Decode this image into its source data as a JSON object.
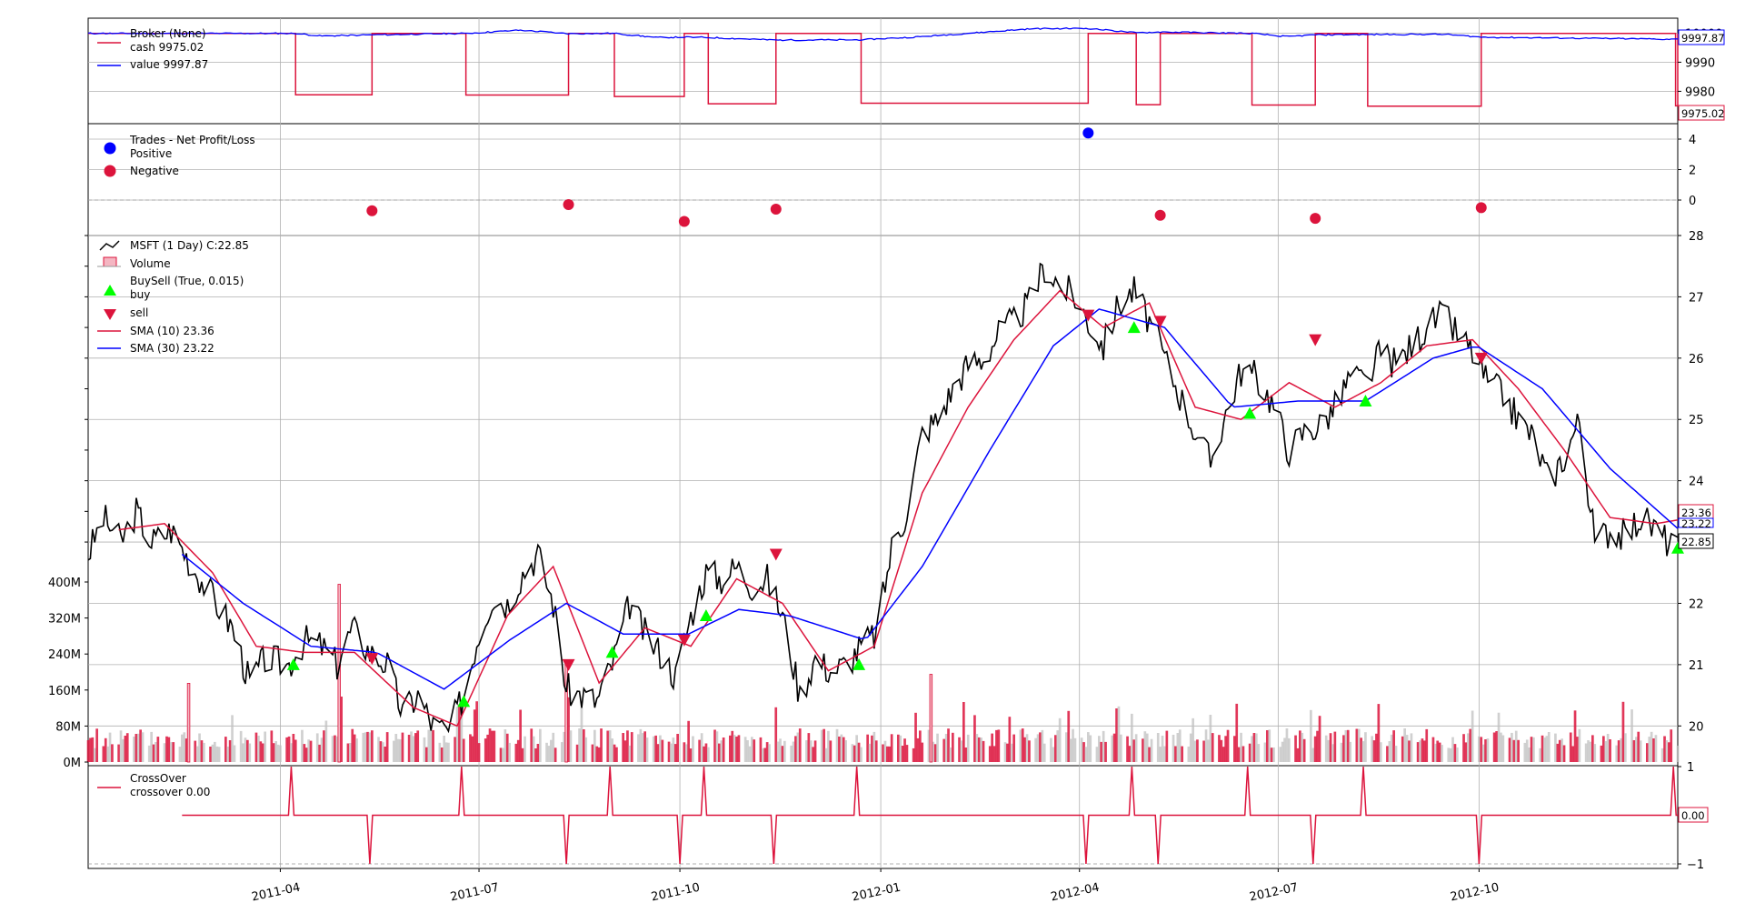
{
  "colors": {
    "cash": "#dc143c",
    "value": "#0000ff",
    "close": "#000000",
    "sma10": "#dc143c",
    "sma30": "#0000ff",
    "buy": "#00ff00",
    "sell": "#dc143c",
    "positive": "#0000ff",
    "negative": "#dc143c",
    "vol_up": "#dc143c",
    "vol_down": "#c0c0c0",
    "crossover": "#dc143c",
    "grid": "#b0b0b0"
  },
  "broker": {
    "legend": [
      "Broker (None)",
      "cash 9975.02",
      "value 9997.87"
    ],
    "y_ticks": [
      "9980",
      "9990",
      "10000"
    ],
    "tags": {
      "value": "9997.87",
      "cash": "9975.02"
    }
  },
  "trades": {
    "legend": [
      "Trades - Net Profit/Loss",
      "Positive",
      "Negative"
    ],
    "y_ticks": [
      "0",
      "2",
      "4"
    ]
  },
  "price": {
    "legend": [
      "MSFT (1 Day) C:22.85",
      "Volume",
      "BuySell (True, 0.015)",
      "buy",
      "sell",
      "SMA (10) 23.36",
      "SMA (30) 23.22"
    ],
    "y_ticks": [
      "20",
      "21",
      "22",
      "23",
      "24",
      "25",
      "26",
      "27",
      "28"
    ],
    "volume_ticks": [
      "0M",
      "80M",
      "160M",
      "240M",
      "320M",
      "400M"
    ],
    "tags": {
      "sma10": "23.36",
      "sma30": "23.22",
      "close": "22.85"
    }
  },
  "crossover": {
    "legend": [
      "CrossOver",
      "crossover 0.00"
    ],
    "y_ticks": [
      "1",
      "−1"
    ],
    "tag": "0.00"
  },
  "x_ticks": [
    "2011-04",
    "2011-07",
    "2011-10",
    "2012-01",
    "2012-04",
    "2012-07",
    "2012-10"
  ],
  "chart_data": {
    "type": "line",
    "x_start": "2011-01-03",
    "x_end": "2012-12-31",
    "price_ylim": [
      19.5,
      28.0
    ],
    "volume_ylim": [
      0,
      400
    ],
    "broker_ylim": [
      9972,
      10002
    ],
    "trades_ylim": [
      -1.5,
      4.5
    ],
    "crossover_ylim": [
      -1,
      1
    ],
    "close_anchors": [
      [
        "2011-01-03",
        22.8
      ],
      [
        "2011-01-10",
        23.4
      ],
      [
        "2011-01-18",
        23.0
      ],
      [
        "2011-01-25",
        23.5
      ],
      [
        "2011-02-01",
        23.0
      ],
      [
        "2011-02-10",
        23.2
      ],
      [
        "2011-02-20",
        22.6
      ],
      [
        "2011-03-01",
        22.1
      ],
      [
        "2011-03-10",
        21.6
      ],
      [
        "2011-03-18",
        20.7
      ],
      [
        "2011-03-25",
        21.1
      ],
      [
        "2011-04-05",
        21.0
      ],
      [
        "2011-04-12",
        21.4
      ],
      [
        "2011-04-20",
        21.3
      ],
      [
        "2011-04-27",
        21.0
      ],
      [
        "2011-05-04",
        21.6
      ],
      [
        "2011-05-12",
        21.2
      ],
      [
        "2011-05-20",
        21.0
      ],
      [
        "2011-05-27",
        20.2
      ],
      [
        "2011-06-03",
        20.5
      ],
      [
        "2011-06-10",
        20.0
      ],
      [
        "2011-06-17",
        19.9
      ],
      [
        "2011-06-24",
        20.5
      ],
      [
        "2011-06-30",
        21.4
      ],
      [
        "2011-07-07",
        22.1
      ],
      [
        "2011-07-14",
        22.0
      ],
      [
        "2011-07-21",
        22.5
      ],
      [
        "2011-07-28",
        22.8
      ],
      [
        "2011-08-04",
        22.0
      ],
      [
        "2011-08-10",
        20.6
      ],
      [
        "2011-08-17",
        20.5
      ],
      [
        "2011-08-24",
        20.4
      ],
      [
        "2011-08-31",
        21.0
      ],
      [
        "2011-09-08",
        22.0
      ],
      [
        "2011-09-15",
        21.5
      ],
      [
        "2011-09-22",
        21.2
      ],
      [
        "2011-09-29",
        20.8
      ],
      [
        "2011-10-06",
        21.8
      ],
      [
        "2011-10-13",
        22.5
      ],
      [
        "2011-10-20",
        22.4
      ],
      [
        "2011-10-27",
        22.6
      ],
      [
        "2011-11-03",
        22.3
      ],
      [
        "2011-11-10",
        22.4
      ],
      [
        "2011-11-17",
        21.8
      ],
      [
        "2011-11-25",
        20.5
      ],
      [
        "2011-12-02",
        21.1
      ],
      [
        "2011-12-09",
        20.9
      ],
      [
        "2011-12-16",
        21.0
      ],
      [
        "2011-12-23",
        21.3
      ],
      [
        "2011-12-30",
        21.5
      ],
      [
        "2012-01-06",
        22.9
      ],
      [
        "2012-01-13",
        23.5
      ],
      [
        "2012-01-20",
        24.8
      ],
      [
        "2012-01-27",
        25.0
      ],
      [
        "2012-02-03",
        25.5
      ],
      [
        "2012-02-10",
        25.9
      ],
      [
        "2012-02-17",
        26.0
      ],
      [
        "2012-02-24",
        26.4
      ],
      [
        "2012-03-02",
        26.6
      ],
      [
        "2012-03-09",
        26.9
      ],
      [
        "2012-03-16",
        27.5
      ],
      [
        "2012-03-23",
        27.2
      ],
      [
        "2012-03-30",
        27.0
      ],
      [
        "2012-04-05",
        26.6
      ],
      [
        "2012-04-12",
        26.2
      ],
      [
        "2012-04-19",
        26.9
      ],
      [
        "2012-04-26",
        27.1
      ],
      [
        "2012-05-03",
        26.6
      ],
      [
        "2012-05-10",
        26.0
      ],
      [
        "2012-05-17",
        25.4
      ],
      [
        "2012-05-24",
        24.8
      ],
      [
        "2012-05-31",
        24.3
      ],
      [
        "2012-06-07",
        25.1
      ],
      [
        "2012-06-14",
        25.8
      ],
      [
        "2012-06-21",
        25.7
      ],
      [
        "2012-06-28",
        25.3
      ],
      [
        "2012-07-06",
        24.5
      ],
      [
        "2012-07-13",
        24.8
      ],
      [
        "2012-07-20",
        24.9
      ],
      [
        "2012-07-27",
        25.2
      ],
      [
        "2012-08-03",
        25.7
      ],
      [
        "2012-08-10",
        25.6
      ],
      [
        "2012-08-17",
        26.1
      ],
      [
        "2012-08-24",
        25.9
      ],
      [
        "2012-08-31",
        26.2
      ],
      [
        "2012-09-07",
        26.5
      ],
      [
        "2012-09-14",
        26.7
      ],
      [
        "2012-09-21",
        26.4
      ],
      [
        "2012-09-28",
        26.1
      ],
      [
        "2012-10-05",
        25.6
      ],
      [
        "2012-10-12",
        25.4
      ],
      [
        "2012-10-19",
        25.0
      ],
      [
        "2012-10-26",
        24.7
      ],
      [
        "2012-11-02",
        24.0
      ],
      [
        "2012-11-09",
        24.4
      ],
      [
        "2012-11-16",
        25.0
      ],
      [
        "2012-11-23",
        23.0
      ],
      [
        "2012-11-30",
        23.2
      ],
      [
        "2012-12-07",
        23.1
      ],
      [
        "2012-12-14",
        23.4
      ],
      [
        "2012-12-21",
        23.2
      ],
      [
        "2012-12-31",
        22.85
      ]
    ],
    "sma10_anchors": [
      [
        "2011-01-17",
        23.2
      ],
      [
        "2011-02-07",
        23.3
      ],
      [
        "2011-03-01",
        22.5
      ],
      [
        "2011-03-21",
        21.3
      ],
      [
        "2011-04-12",
        21.2
      ],
      [
        "2011-05-05",
        21.2
      ],
      [
        "2011-06-01",
        20.3
      ],
      [
        "2011-06-21",
        20.0
      ],
      [
        "2011-07-14",
        21.8
      ],
      [
        "2011-08-04",
        22.6
      ],
      [
        "2011-08-25",
        20.7
      ],
      [
        "2011-09-15",
        21.6
      ],
      [
        "2011-10-06",
        21.3
      ],
      [
        "2011-10-27",
        22.4
      ],
      [
        "2011-11-17",
        22.0
      ],
      [
        "2011-12-08",
        20.9
      ],
      [
        "2011-12-29",
        21.3
      ],
      [
        "2012-01-20",
        23.8
      ],
      [
        "2012-02-10",
        25.2
      ],
      [
        "2012-03-02",
        26.3
      ],
      [
        "2012-03-23",
        27.1
      ],
      [
        "2012-04-12",
        26.5
      ],
      [
        "2012-05-03",
        26.9
      ],
      [
        "2012-05-24",
        25.2
      ],
      [
        "2012-06-14",
        25.0
      ],
      [
        "2012-07-06",
        25.6
      ],
      [
        "2012-07-27",
        25.2
      ],
      [
        "2012-08-17",
        25.6
      ],
      [
        "2012-09-07",
        26.2
      ],
      [
        "2012-09-28",
        26.3
      ],
      [
        "2012-10-19",
        25.5
      ],
      [
        "2012-11-09",
        24.5
      ],
      [
        "2012-11-30",
        23.4
      ],
      [
        "2012-12-21",
        23.3
      ],
      [
        "2012-12-31",
        23.36
      ]
    ],
    "sma30_anchors": [
      [
        "2011-02-15",
        22.8
      ],
      [
        "2011-03-15",
        22.0
      ],
      [
        "2011-04-15",
        21.3
      ],
      [
        "2011-05-15",
        21.2
      ],
      [
        "2011-06-15",
        20.6
      ],
      [
        "2011-07-15",
        21.4
      ],
      [
        "2011-08-10",
        22.0
      ],
      [
        "2011-09-05",
        21.5
      ],
      [
        "2011-10-05",
        21.5
      ],
      [
        "2011-10-28",
        21.9
      ],
      [
        "2011-11-20",
        21.8
      ],
      [
        "2011-12-25",
        21.4
      ],
      [
        "2012-01-20",
        22.6
      ],
      [
        "2012-02-20",
        24.5
      ],
      [
        "2012-03-20",
        26.2
      ],
      [
        "2012-04-10",
        26.8
      ],
      [
        "2012-05-10",
        26.5
      ],
      [
        "2012-06-10",
        25.2
      ],
      [
        "2012-07-10",
        25.3
      ],
      [
        "2012-08-10",
        25.3
      ],
      [
        "2012-09-10",
        26.0
      ],
      [
        "2012-09-30",
        26.2
      ],
      [
        "2012-10-30",
        25.5
      ],
      [
        "2012-11-30",
        24.2
      ],
      [
        "2012-12-31",
        23.22
      ]
    ],
    "buy_signals": [
      [
        "2011-04-07",
        21.0
      ],
      [
        "2011-06-24",
        20.4
      ],
      [
        "2011-08-31",
        21.2
      ],
      [
        "2011-10-13",
        21.8
      ],
      [
        "2011-12-22",
        21.0
      ],
      [
        "2012-04-26",
        26.5
      ],
      [
        "2012-06-18",
        25.1
      ],
      [
        "2012-08-10",
        25.3
      ],
      [
        "2012-12-31",
        22.9
      ]
    ],
    "sell_signals": [
      [
        "2011-05-13",
        21.1
      ],
      [
        "2011-08-11",
        21.0
      ],
      [
        "2011-10-03",
        21.4
      ],
      [
        "2011-11-14",
        22.8
      ],
      [
        "2012-04-05",
        26.7
      ],
      [
        "2012-05-08",
        26.6
      ],
      [
        "2012-07-18",
        26.3
      ],
      [
        "2012-10-02",
        26.0
      ]
    ],
    "cash_flat_periods": [
      [
        "2011-04-08",
        "2011-05-13",
        9978.8
      ],
      [
        "2011-06-25",
        "2011-08-11",
        9978.7
      ],
      [
        "2011-09-01",
        "2011-10-03",
        9978.2
      ],
      [
        "2011-10-14",
        "2011-11-14",
        9975.7
      ],
      [
        "2011-12-23",
        "2012-04-05",
        9975.9
      ],
      [
        "2012-04-27",
        "2012-05-08",
        9975.4
      ],
      [
        "2012-06-19",
        "2012-07-18",
        9975.3
      ],
      [
        "2012-08-11",
        "2012-10-02",
        9974.9
      ],
      [
        "2012-12-30",
        "2012-12-31",
        9975.02
      ]
    ],
    "cash_base": 9999.9,
    "trade_results": [
      [
        "2011-05-13",
        -0.7
      ],
      [
        "2011-08-11",
        -0.3
      ],
      [
        "2011-10-03",
        -1.4
      ],
      [
        "2011-11-14",
        -0.6
      ],
      [
        "2012-04-05",
        4.4
      ],
      [
        "2012-05-08",
        -1.0
      ],
      [
        "2012-07-18",
        -1.2
      ],
      [
        "2012-10-02",
        -0.5
      ]
    ],
    "crossover_events": [
      [
        "2011-04-06",
        1
      ],
      [
        "2011-05-12",
        -1
      ],
      [
        "2011-06-23",
        1
      ],
      [
        "2011-08-10",
        -1
      ],
      [
        "2011-08-30",
        1
      ],
      [
        "2011-10-01",
        -1
      ],
      [
        "2011-10-12",
        1
      ],
      [
        "2011-11-13",
        -1
      ],
      [
        "2011-12-21",
        1
      ],
      [
        "2012-04-04",
        -1
      ],
      [
        "2012-04-25",
        1
      ],
      [
        "2012-05-07",
        -1
      ],
      [
        "2012-06-17",
        1
      ],
      [
        "2012-07-17",
        -1
      ],
      [
        "2012-08-09",
        1
      ],
      [
        "2012-10-01",
        -1
      ],
      [
        "2012-12-29",
        1
      ]
    ],
    "crossover_start": "2011-02-15"
  }
}
